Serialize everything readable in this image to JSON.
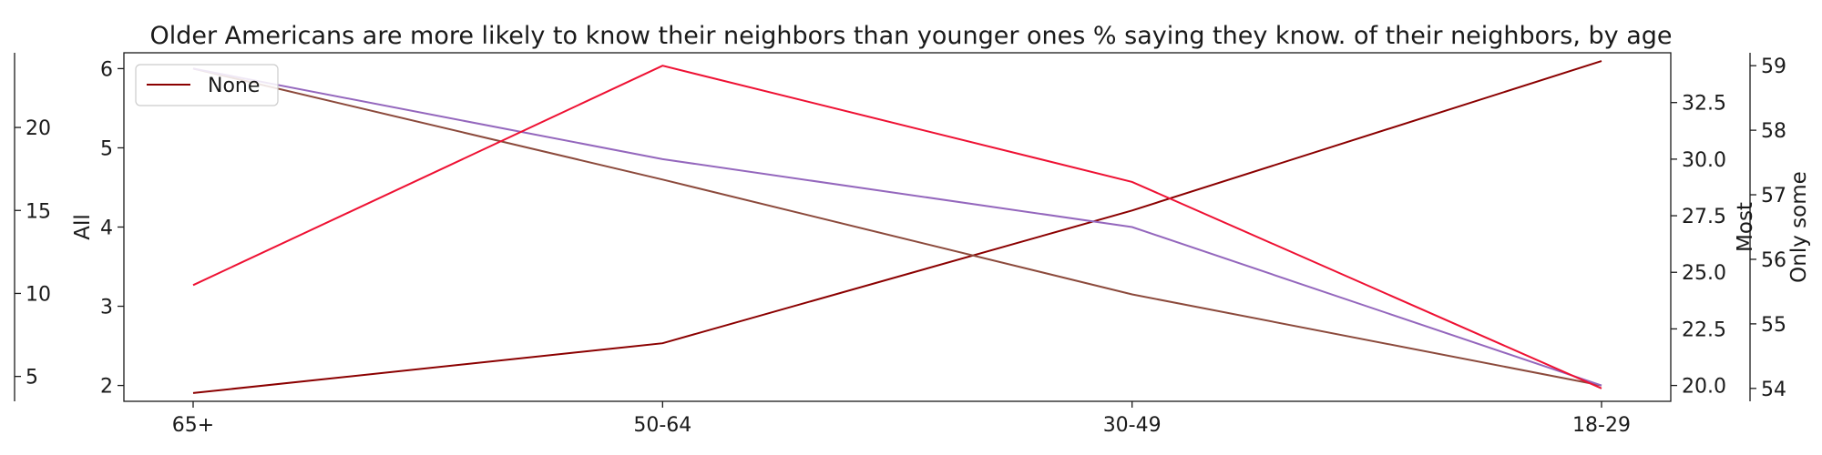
{
  "chart_data": {
    "type": "line",
    "title": "Older Americans are more likely to know their neighbors than younger ones % saying they know. of their neighbors, by age",
    "categories": [
      "65+",
      "50-64",
      "30-49",
      "18-29"
    ],
    "axes": {
      "all": {
        "label": "All",
        "ylim": [
          1.8,
          6.2
        ],
        "ticks": [
          2,
          3,
          4,
          5,
          6
        ]
      },
      "none": {
        "label": "",
        "ylim": [
          3.5,
          24.5
        ],
        "ticks": [
          5,
          10,
          15,
          20
        ]
      },
      "most": {
        "label": "Most",
        "ylim": [
          19.3,
          34.7
        ],
        "ticks": [
          "20.0",
          "22.5",
          "25.0",
          "27.5",
          "30.0",
          "32.5"
        ]
      },
      "only_some": {
        "label": "Only some",
        "ylim": [
          53.8,
          59.2
        ],
        "ticks": [
          54,
          55,
          56,
          57,
          58,
          59
        ]
      }
    },
    "series": [
      {
        "name": "None",
        "axis": "none",
        "color": "#8b0000",
        "values": [
          4,
          7,
          15,
          24
        ]
      },
      {
        "name": "",
        "axis": "all",
        "color": "#8c4a3c",
        "values": [
          6,
          4.6,
          3.15,
          2
        ]
      },
      {
        "name": "",
        "axis": "most",
        "color": "#9467bd",
        "values": [
          34,
          30,
          27,
          20
        ]
      },
      {
        "name": "",
        "axis": "only_some",
        "color": "#ee1133",
        "values": [
          55.6,
          59,
          57.2,
          54
        ]
      }
    ],
    "legend": {
      "entries": [
        "None"
      ],
      "placement": "top-left"
    },
    "grid": false
  }
}
